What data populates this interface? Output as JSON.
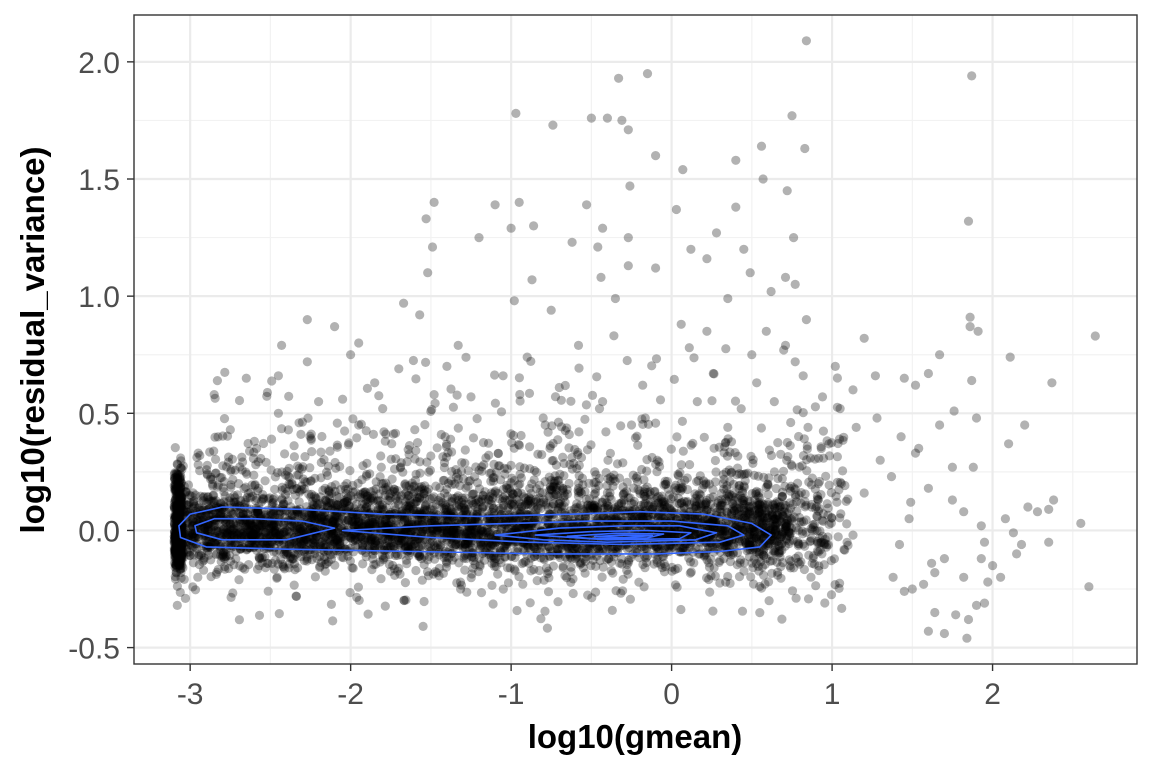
{
  "chart_data": {
    "type": "scatter",
    "title": "",
    "xlabel": "log10(gmean)",
    "ylabel": "log10(residual_variance)",
    "xlim": [
      -3.35,
      2.9
    ],
    "ylim": [
      -0.57,
      2.2
    ],
    "x_ticks": [
      -3,
      -2,
      -1,
      0,
      1,
      2
    ],
    "x_tick_labels": [
      "-3",
      "-2",
      "-1",
      "0",
      "1",
      "2"
    ],
    "y_ticks": [
      -0.5,
      0.0,
      0.5,
      1.0,
      1.5,
      2.0
    ],
    "y_tick_labels": [
      "-0.5",
      "0.0",
      "0.5",
      "1.0",
      "1.5",
      "2.0"
    ],
    "grid": true,
    "legend": "none",
    "point_color": "#000000",
    "point_alpha": 0.3,
    "contour_color": "#3366FF",
    "series": [
      {
        "kind": "points",
        "points": [
          [
            -0.87,
            1.07
          ],
          [
            -0.33,
            1.93
          ],
          [
            -0.15,
            1.95
          ],
          [
            -0.4,
            1.76
          ],
          [
            -0.31,
            1.75
          ],
          [
            -0.27,
            1.71
          ],
          [
            -0.97,
            1.78
          ],
          [
            -0.74,
            1.73
          ],
          [
            -0.5,
            1.76
          ],
          [
            -0.1,
            1.6
          ],
          [
            0.75,
            1.77
          ],
          [
            0.84,
            2.09
          ],
          [
            0.83,
            1.63
          ],
          [
            0.56,
            1.64
          ],
          [
            0.57,
            1.5
          ],
          [
            0.4,
            1.58
          ],
          [
            0.72,
            1.45
          ],
          [
            -0.26,
            1.47
          ],
          [
            0.07,
            1.54
          ],
          [
            0.03,
            1.37
          ],
          [
            -0.53,
            1.39
          ],
          [
            -1.0,
            1.29
          ],
          [
            -1.1,
            1.39
          ],
          [
            -0.95,
            1.4
          ],
          [
            -1.48,
            1.4
          ],
          [
            -1.53,
            1.33
          ],
          [
            -1.49,
            1.21
          ],
          [
            -1.2,
            1.25
          ],
          [
            -0.62,
            1.23
          ],
          [
            -0.44,
            1.08
          ],
          [
            -0.27,
            1.25
          ],
          [
            -0.27,
            1.13
          ],
          [
            -0.1,
            1.12
          ],
          [
            0.12,
            1.2
          ],
          [
            0.22,
            1.16
          ],
          [
            0.28,
            1.27
          ],
          [
            0.4,
            1.38
          ],
          [
            0.49,
            1.1
          ],
          [
            0.45,
            1.2
          ],
          [
            0.71,
            1.08
          ],
          [
            0.62,
            1.02
          ],
          [
            0.77,
            1.05
          ],
          [
            0.76,
            1.25
          ],
          [
            -0.86,
            1.3
          ],
          [
            -0.43,
            1.29
          ],
          [
            -0.46,
            1.21
          ],
          [
            -1.52,
            1.1
          ],
          [
            -1.57,
            0.92
          ],
          [
            -2.27,
            0.9
          ],
          [
            -2.1,
            0.87
          ],
          [
            -1.95,
            0.8
          ],
          [
            -1.67,
            0.97
          ],
          [
            -0.98,
            0.98
          ],
          [
            -0.75,
            0.94
          ],
          [
            -0.35,
            0.99
          ],
          [
            0.06,
            0.88
          ],
          [
            0.35,
            0.99
          ],
          [
            0.22,
            0.85
          ],
          [
            0.59,
            0.85
          ],
          [
            0.84,
            0.9
          ],
          [
            1.2,
            0.82
          ],
          [
            0.71,
            0.79
          ],
          [
            -2.43,
            0.79
          ],
          [
            -2.0,
            0.75
          ],
          [
            -1.7,
            0.69
          ],
          [
            -1.33,
            0.79
          ],
          [
            -0.58,
            0.79
          ],
          [
            -0.9,
            0.74
          ],
          [
            0.11,
            0.78
          ],
          [
            0.5,
            0.75
          ],
          [
            0.77,
            0.72
          ],
          [
            1.02,
            0.7
          ],
          [
            1.27,
            0.66
          ],
          [
            -2.65,
            0.65
          ],
          [
            -2.45,
            0.66
          ],
          [
            -2.27,
            0.72
          ],
          [
            -1.85,
            0.63
          ],
          [
            -1.4,
            0.7
          ],
          [
            -1.05,
            0.66
          ],
          [
            -0.7,
            0.61
          ],
          [
            -0.18,
            0.62
          ],
          [
            0.26,
            0.67
          ],
          [
            0.53,
            0.63
          ],
          [
            0.82,
            0.66
          ],
          [
            1.13,
            0.6
          ],
          [
            -2.85,
            0.58
          ],
          [
            -2.05,
            0.56
          ],
          [
            -1.25,
            0.57
          ],
          [
            -0.43,
            0.55
          ],
          [
            0.16,
            0.55
          ],
          [
            0.64,
            0.55
          ],
          [
            0.94,
            0.57
          ],
          [
            1.45,
            0.65
          ],
          [
            1.67,
            0.75
          ],
          [
            1.6,
            0.67
          ],
          [
            1.52,
            0.62
          ],
          [
            1.87,
            0.64
          ],
          [
            1.86,
            0.91
          ],
          [
            1.86,
            0.87
          ],
          [
            1.91,
            0.85
          ],
          [
            2.11,
            0.74
          ],
          [
            2.37,
            0.63
          ],
          [
            2.64,
            0.83
          ],
          [
            1.85,
            1.32
          ],
          [
            1.87,
            1.94
          ],
          [
            1.28,
            0.48
          ],
          [
            1.43,
            0.4
          ],
          [
            1.67,
            0.45
          ],
          [
            1.76,
            0.51
          ],
          [
            1.9,
            0.48
          ],
          [
            2.2,
            0.45
          ],
          [
            2.1,
            0.37
          ],
          [
            1.54,
            0.35
          ],
          [
            1.52,
            0.33
          ],
          [
            1.6,
            0.18
          ],
          [
            1.75,
            0.27
          ],
          [
            1.88,
            0.27
          ],
          [
            1.37,
            0.23
          ],
          [
            1.49,
            0.12
          ],
          [
            1.38,
            -0.2
          ],
          [
            1.5,
            -0.25
          ],
          [
            1.62,
            -0.14
          ],
          [
            1.64,
            -0.35
          ],
          [
            1.6,
            -0.43
          ],
          [
            1.7,
            -0.44
          ],
          [
            1.77,
            -0.36
          ],
          [
            1.84,
            -0.46
          ],
          [
            1.85,
            -0.38
          ],
          [
            1.9,
            -0.32
          ],
          [
            1.95,
            -0.31
          ],
          [
            1.82,
            -0.2
          ],
          [
            1.93,
            -0.12
          ],
          [
            1.95,
            -0.05
          ],
          [
            2.0,
            -0.15
          ],
          [
            2.05,
            -0.2
          ],
          [
            2.15,
            -0.1
          ],
          [
            2.18,
            -0.06
          ],
          [
            2.08,
            0.05
          ],
          [
            2.13,
            -0.01
          ],
          [
            2.22,
            0.1
          ],
          [
            2.28,
            0.08
          ],
          [
            2.35,
            0.09
          ],
          [
            2.38,
            0.13
          ],
          [
            2.35,
            -0.05
          ],
          [
            2.55,
            0.03
          ],
          [
            2.6,
            -0.24
          ],
          [
            1.93,
            0.02
          ],
          [
            1.97,
            -0.22
          ],
          [
            1.7,
            -0.12
          ],
          [
            1.64,
            -0.18
          ],
          [
            1.75,
            0.13
          ],
          [
            1.82,
            0.08
          ],
          [
            1.57,
            -0.23
          ],
          [
            1.45,
            -0.26
          ],
          [
            1.48,
            0.05
          ],
          [
            1.42,
            -0.06
          ],
          [
            1.13,
            -0.02
          ],
          [
            1.03,
            0.12
          ],
          [
            1.2,
            0.16
          ],
          [
            1.3,
            0.3
          ],
          [
            1.15,
            0.44
          ],
          [
            -3.08,
            -0.32
          ],
          [
            -3.03,
            -0.29
          ],
          [
            -2.95,
            0.33
          ],
          [
            -2.95,
            0.28
          ],
          [
            -2.75,
            0.43
          ],
          [
            -2.6,
            0.38
          ],
          [
            -2.45,
            0.5
          ],
          [
            -2.31,
            0.41
          ],
          [
            -2.2,
            0.55
          ],
          [
            -1.95,
            0.45
          ],
          [
            -1.8,
            0.52
          ],
          [
            -1.6,
            0.43
          ],
          [
            -1.48,
            0.58
          ],
          [
            -0.8,
            0.48
          ],
          [
            -0.25,
            0.45
          ],
          [
            0.35,
            0.44
          ],
          [
            0.85,
            0.44
          ],
          [
            1.05,
            0.52
          ]
        ]
      },
      {
        "kind": "density_cloud",
        "bands": [
          {
            "x": [
              -3.08,
              0.75
            ],
            "center": 0.0,
            "spread": 0.06,
            "n": 2400
          },
          {
            "x": [
              -3.08,
              1.0
            ],
            "center": 0.02,
            "spread": 0.12,
            "n": 1500
          },
          {
            "x": [
              -2.9,
              1.1
            ],
            "center": 0.08,
            "spread": 0.18,
            "n": 900
          },
          {
            "x": [
              -3.1,
              -3.05
            ],
            "center": 0.0,
            "spread": 0.09,
            "n": 450
          }
        ]
      },
      {
        "kind": "contours",
        "levels": [
          [
            [
              -3.07,
              0.02
            ],
            [
              -3.0,
              0.07
            ],
            [
              -2.8,
              0.1
            ],
            [
              -2.3,
              0.09
            ],
            [
              -1.8,
              0.07
            ],
            [
              -1.2,
              0.06
            ],
            [
              -0.6,
              0.07
            ],
            [
              -0.2,
              0.08
            ],
            [
              0.2,
              0.07
            ],
            [
              0.5,
              0.03
            ],
            [
              0.62,
              -0.02
            ],
            [
              0.55,
              -0.07
            ],
            [
              0.3,
              -0.09
            ],
            [
              -0.1,
              -0.1
            ],
            [
              -0.8,
              -0.1
            ],
            [
              -1.6,
              -0.09
            ],
            [
              -2.4,
              -0.08
            ],
            [
              -2.9,
              -0.07
            ],
            [
              -3.06,
              -0.03
            ],
            [
              -3.07,
              0.02
            ]
          ],
          [
            [
              -2.97,
              0.02
            ],
            [
              -2.85,
              0.05
            ],
            [
              -2.6,
              0.05
            ],
            [
              -2.3,
              0.04
            ],
            [
              -2.1,
              0.01
            ],
            [
              -2.4,
              -0.04
            ],
            [
              -2.8,
              -0.04
            ],
            [
              -2.96,
              -0.01
            ],
            [
              -2.97,
              0.02
            ]
          ],
          [
            [
              -2.05,
              0.0
            ],
            [
              -1.5,
              0.02
            ],
            [
              -1.0,
              0.03
            ],
            [
              -0.5,
              0.04
            ],
            [
              0.0,
              0.04
            ],
            [
              0.35,
              0.02
            ],
            [
              0.45,
              -0.02
            ],
            [
              0.3,
              -0.05
            ],
            [
              -0.3,
              -0.06
            ],
            [
              -0.9,
              -0.05
            ],
            [
              -1.5,
              -0.03
            ],
            [
              -2.05,
              0.0
            ]
          ],
          [
            [
              -1.1,
              -0.02
            ],
            [
              -0.7,
              0.01
            ],
            [
              -0.3,
              0.02
            ],
            [
              0.05,
              0.02
            ],
            [
              0.28,
              -0.01
            ],
            [
              0.15,
              -0.04
            ],
            [
              -0.4,
              -0.05
            ],
            [
              -0.8,
              -0.04
            ],
            [
              -1.1,
              -0.02
            ]
          ],
          [
            [
              -0.85,
              -0.02
            ],
            [
              -0.5,
              -0.005
            ],
            [
              -0.15,
              0.0
            ],
            [
              0.12,
              -0.01
            ],
            [
              0.05,
              -0.035
            ],
            [
              -0.4,
              -0.04
            ],
            [
              -0.85,
              -0.02
            ]
          ],
          [
            [
              -0.65,
              -0.025
            ],
            [
              -0.35,
              -0.012
            ],
            [
              -0.05,
              -0.015
            ],
            [
              -0.15,
              -0.032
            ],
            [
              -0.5,
              -0.035
            ],
            [
              -0.65,
              -0.025
            ]
          ],
          [
            [
              -0.48,
              -0.026
            ],
            [
              -0.3,
              -0.02
            ],
            [
              -0.12,
              -0.022
            ],
            [
              -0.3,
              -0.03
            ],
            [
              -0.48,
              -0.026
            ]
          ]
        ]
      }
    ]
  }
}
